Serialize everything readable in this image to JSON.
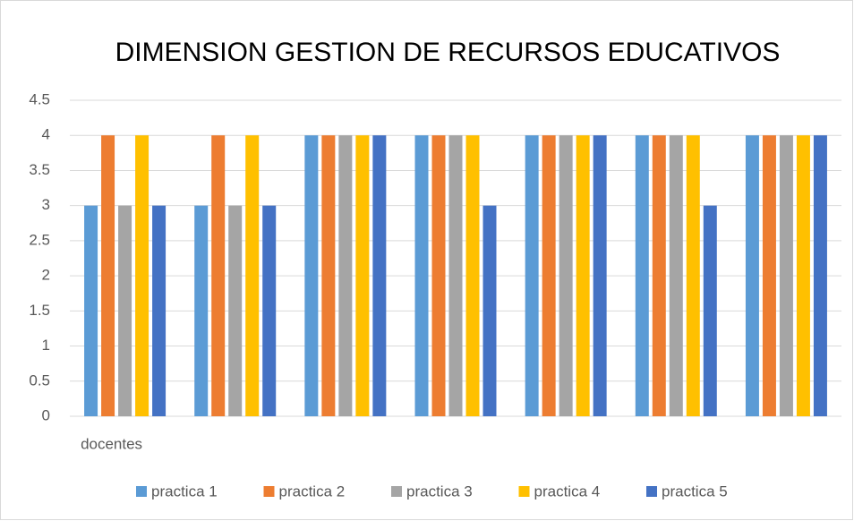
{
  "chart_data": {
    "type": "bar",
    "title": "DIMENSION GESTION DE RECURSOS EDUCATIVOS",
    "categories": [
      "docentes",
      null,
      null,
      null,
      null,
      null,
      null
    ],
    "series": [
      {
        "name": "practica 1",
        "color": "#5b9bd5",
        "values": [
          3,
          3,
          4,
          4,
          4,
          4,
          4
        ]
      },
      {
        "name": "practica 2",
        "color": "#ed7d31",
        "values": [
          4,
          4,
          4,
          4,
          4,
          4,
          4
        ]
      },
      {
        "name": "practica 3",
        "color": "#a5a5a5",
        "values": [
          3,
          3,
          4,
          4,
          4,
          4,
          4
        ]
      },
      {
        "name": "practica 4",
        "color": "#ffc000",
        "values": [
          4,
          4,
          4,
          4,
          4,
          4,
          4
        ]
      },
      {
        "name": "practica 5",
        "color": "#4472c4",
        "values": [
          3,
          3,
          4,
          3,
          4,
          3,
          4
        ]
      }
    ],
    "ylim": [
      0,
      4.5
    ],
    "yticks": [
      0,
      0.5,
      1,
      1.5,
      2,
      2.5,
      3,
      3.5,
      4,
      4.5
    ],
    "grid": true,
    "legend": "bottom"
  }
}
